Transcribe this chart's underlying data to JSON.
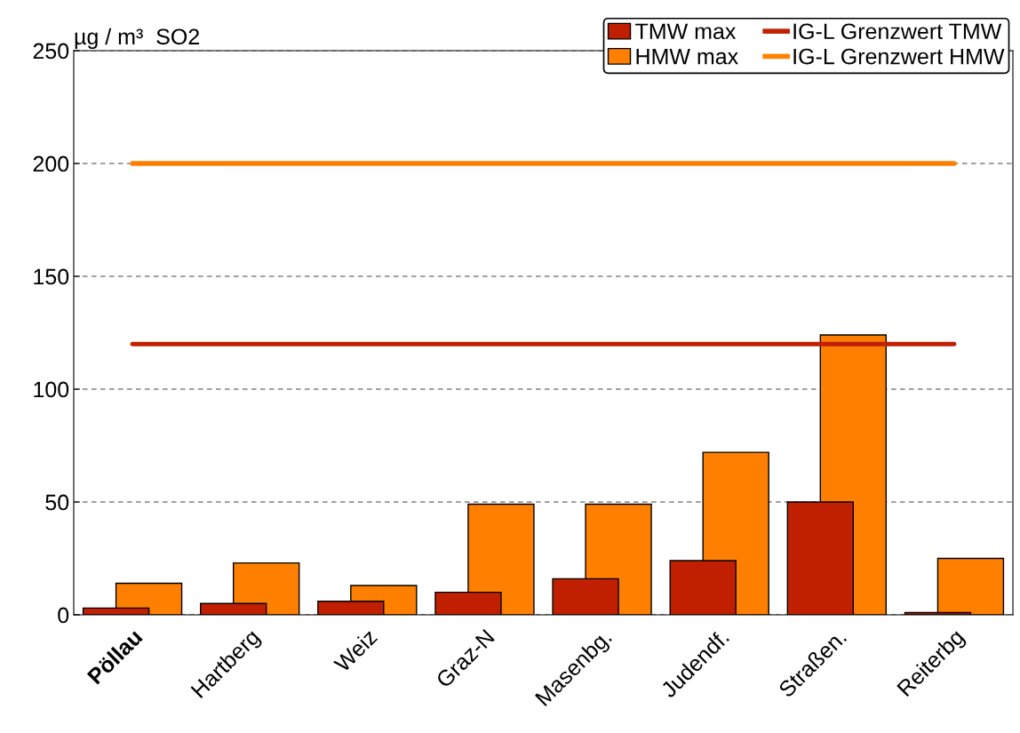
{
  "chart_data": {
    "type": "bar",
    "ylabel": "µg / m³  SO2",
    "categories": [
      "Pöllau",
      "Hartberg",
      "Weiz",
      "Graz-N",
      "Masenbg.",
      "Judendf.",
      "Straßen.",
      "Reiterbg"
    ],
    "series": [
      {
        "name": "TMW max",
        "color": "#c02000",
        "values": [
          3,
          5,
          6,
          10,
          16,
          24,
          50,
          1
        ]
      },
      {
        "name": "HMW max",
        "color": "#ff8000",
        "values": [
          14,
          23,
          13,
          49,
          49,
          72,
          124,
          25
        ]
      },
      {
        "name": "IG-L Grenzwert TMW",
        "type": "line",
        "color": "#c02000",
        "values": [
          120,
          120,
          120,
          120,
          120,
          120,
          120,
          120
        ]
      },
      {
        "name": "IG-L Grenzwert HMW",
        "type": "line",
        "color": "#ff8000",
        "values": [
          200,
          200,
          200,
          200,
          200,
          200,
          200,
          200
        ]
      }
    ],
    "ylim": [
      0,
      250
    ],
    "yticks": [
      0,
      50,
      100,
      150,
      200,
      250
    ],
    "grid": "y",
    "legend": "top right"
  }
}
